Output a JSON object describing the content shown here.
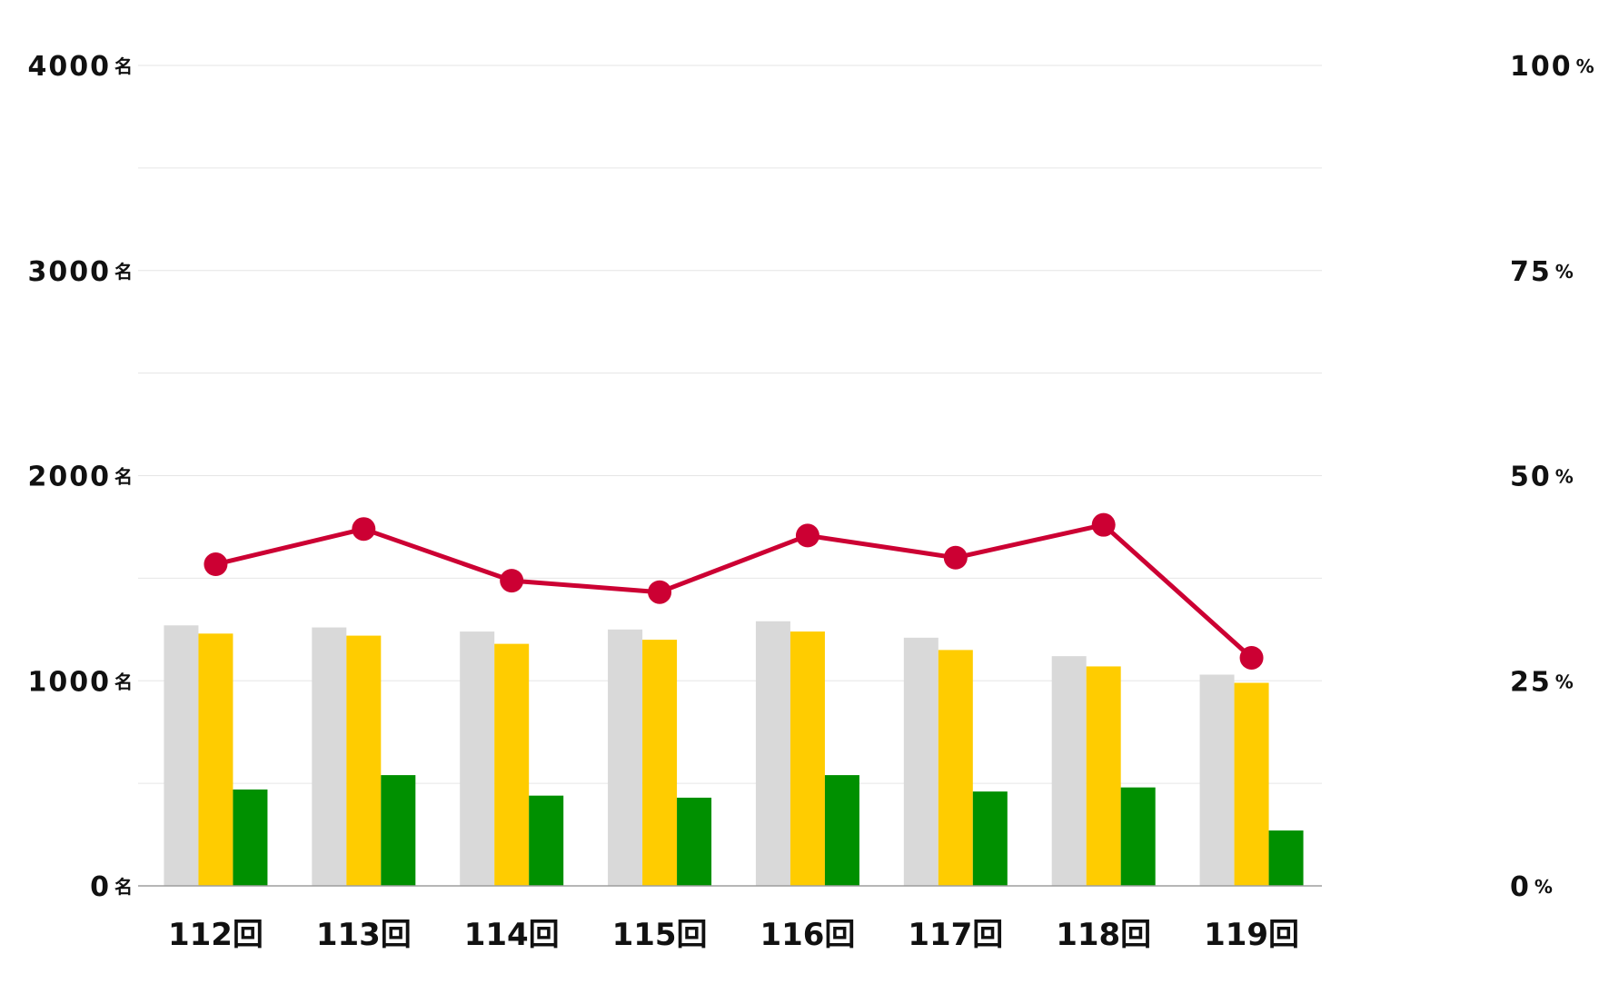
{
  "chart_data": {
    "type": "bar",
    "categories": [
      "112回",
      "113回",
      "114回",
      "115回",
      "116回",
      "117回",
      "118回",
      "119回"
    ],
    "series": [
      {
        "type": "bar",
        "axis": "left",
        "color": "#d9d9d9",
        "values": [
          1270,
          1260,
          1240,
          1250,
          1290,
          1210,
          1120,
          1030
        ]
      },
      {
        "type": "bar",
        "axis": "left",
        "color": "#ffcc00",
        "values": [
          1230,
          1220,
          1180,
          1200,
          1240,
          1150,
          1070,
          990
        ]
      },
      {
        "type": "bar",
        "axis": "left",
        "color": "#009000",
        "values": [
          470,
          540,
          440,
          430,
          540,
          460,
          480,
          270
        ]
      },
      {
        "type": "line",
        "axis": "right",
        "color": "#cc0033",
        "values": [
          39.2,
          43.5,
          37.2,
          35.8,
          42.7,
          40.0,
          44.0,
          27.8
        ]
      }
    ],
    "y_left": {
      "ylim": [
        0,
        4000
      ],
      "ticks": [
        {
          "value": 0,
          "num": "0",
          "unit": "名"
        },
        {
          "value": 1000,
          "num": "1000",
          "unit": "名"
        },
        {
          "value": 2000,
          "num": "2000",
          "unit": "名"
        },
        {
          "value": 3000,
          "num": "3000",
          "unit": "名"
        },
        {
          "value": 4000,
          "num": "4000",
          "unit": "名"
        }
      ]
    },
    "y_right": {
      "ylim": [
        0,
        100
      ],
      "ticks": [
        {
          "value": 0,
          "num": "0",
          "unit": "%"
        },
        {
          "value": 25,
          "num": "25",
          "unit": "%"
        },
        {
          "value": 50,
          "num": "50",
          "unit": "%"
        },
        {
          "value": 75,
          "num": "75",
          "unit": "%"
        },
        {
          "value": 100,
          "num": "100",
          "unit": "%"
        }
      ]
    },
    "grid": true,
    "gridline_step": 500,
    "title": "",
    "xlabel": "",
    "ylabel": ""
  }
}
